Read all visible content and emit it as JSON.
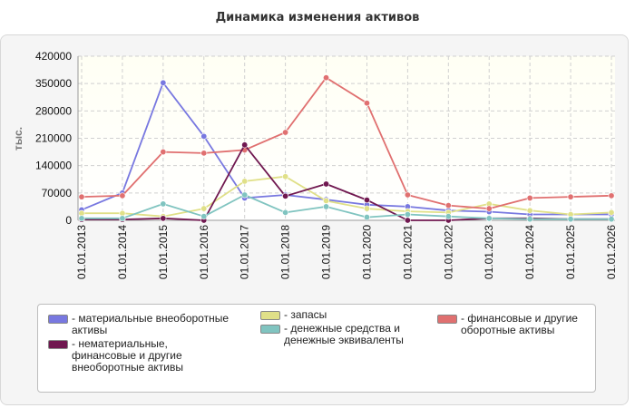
{
  "chart_data": {
    "type": "line",
    "title": "Динамика изменения активов",
    "ylabel": "тыс.",
    "xlabel": "",
    "ylim": [
      0,
      420000
    ],
    "yticks": [
      0,
      70000,
      140000,
      210000,
      280000,
      350000,
      420000
    ],
    "grid": true,
    "legend_position": "bottom",
    "categories": [
      "01.01.2013",
      "01.01.2014",
      "01.01.2015",
      "01.01.2016",
      "01.01.2017",
      "01.01.2018",
      "01.01.2019",
      "01.01.2020",
      "01.01.2021",
      "01.01.2022",
      "01.01.2023",
      "01.01.2024",
      "01.01.2025",
      "01.01.2026"
    ],
    "series": [
      {
        "name": "- материальные внеоборотные активы",
        "color": "#7878e0",
        "values": [
          27000,
          70000,
          352000,
          215000,
          57000,
          65000,
          53000,
          40000,
          35000,
          25000,
          22000,
          15000,
          15000,
          15000
        ]
      },
      {
        "name": "- запасы",
        "color": "#e0e088",
        "values": [
          18000,
          18000,
          10000,
          30000,
          100000,
          112000,
          50000,
          30000,
          23000,
          20000,
          42000,
          25000,
          15000,
          20000
        ]
      },
      {
        "name": "- финансовые и другие оборотные активы",
        "color": "#e07070",
        "values": [
          60000,
          63000,
          175000,
          172000,
          180000,
          225000,
          365000,
          300000,
          65000,
          38000,
          30000,
          57000,
          60000,
          63000
        ]
      },
      {
        "name": "- нематериальные,\nфинансовые и другие\nвнеоборотные активы",
        "color": "#701850",
        "values": [
          2000,
          2000,
          5000,
          0,
          193000,
          62000,
          93000,
          52000,
          0,
          0,
          5000,
          5000,
          3000,
          3000
        ]
      },
      {
        "name": "- денежные средства и\nденежные эквиваленты",
        "color": "#80c4c0",
        "values": [
          5000,
          5000,
          42000,
          10000,
          65000,
          20000,
          35000,
          8000,
          15000,
          10000,
          5000,
          3000,
          3000,
          3000
        ]
      }
    ]
  }
}
